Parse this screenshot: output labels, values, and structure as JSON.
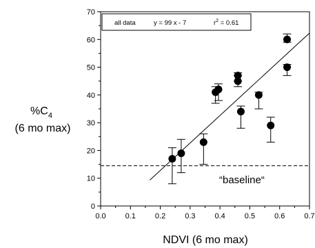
{
  "chart_data": {
    "type": "scatter",
    "xlabel": "NDVI (6 mo max)",
    "ylabel": {
      "line1": "%C",
      "line1_sub": "4",
      "line2": "(6 mo max)"
    },
    "xlim": [
      0.0,
      0.7
    ],
    "ylim": [
      0,
      70
    ],
    "x_ticks": [
      "0.0",
      "0.1",
      "0.2",
      "0.3",
      "0.4",
      "0.5",
      "0.6",
      "0.7"
    ],
    "y_ticks": [
      "0",
      "10",
      "20",
      "30",
      "40",
      "50",
      "60",
      "70"
    ],
    "grid": false,
    "legend": {
      "placement": "top-left",
      "label": "all data",
      "equation": "y = 99 x - 7",
      "r2_prefix": "r",
      "r2_sup": "2",
      "r2_value": " = 0.61"
    },
    "points": [
      {
        "x": 0.24,
        "y": 17,
        "err_low": 8,
        "err_high": 21
      },
      {
        "x": 0.27,
        "y": 19,
        "err_low": 12,
        "err_high": 24
      },
      {
        "x": 0.345,
        "y": 23,
        "err_low": 15,
        "err_high": 26
      },
      {
        "x": 0.385,
        "y": 41,
        "err_low": 37,
        "err_high": 43
      },
      {
        "x": 0.395,
        "y": 42,
        "err_low": 38,
        "err_high": 44
      },
      {
        "x": 0.46,
        "y": 47,
        "err_low": 45,
        "err_high": 48
      },
      {
        "x": 0.46,
        "y": 45,
        "err_low": 43,
        "err_high": 47
      },
      {
        "x": 0.47,
        "y": 34,
        "err_low": 28,
        "err_high": 36
      },
      {
        "x": 0.53,
        "y": 40,
        "err_low": 35,
        "err_high": 41
      },
      {
        "x": 0.57,
        "y": 29,
        "err_low": 23,
        "err_high": 32
      },
      {
        "x": 0.625,
        "y": 60,
        "err_low": 59,
        "err_high": 62
      },
      {
        "x": 0.625,
        "y": 50,
        "err_low": 47,
        "err_high": 51
      }
    ],
    "fit_line": {
      "slope": 99,
      "intercept": -7,
      "x_start": 0.165,
      "x_end": 0.7
    },
    "baseline": {
      "y": 14.5,
      "label": "“baseline“",
      "style": "dashed"
    }
  }
}
